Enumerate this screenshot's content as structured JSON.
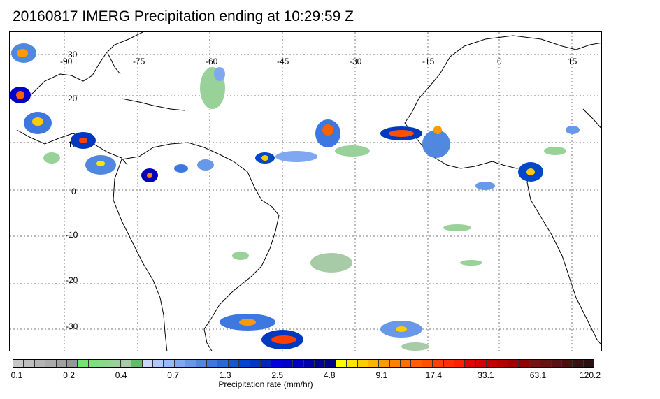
{
  "title": "20160817 IMERG Precipitation ending at 10:29:59 Z",
  "map": {
    "lon_labels": [
      "-90",
      "-75",
      "-60",
      "-45",
      "-30",
      "-15",
      "0",
      "15"
    ],
    "lat_labels": [
      "30",
      "20",
      "10",
      "0",
      "-10",
      "-20",
      "-30"
    ],
    "grid": "dotted"
  },
  "colorbar": {
    "title": "Precipitation rate (mm/hr)",
    "tick_labels": [
      "0.1",
      "0.2",
      "0.4",
      "0.7",
      "1.3",
      "2.5",
      "4.8",
      "9.1",
      "17.4",
      "33.1",
      "63.1",
      "120.2"
    ],
    "colors": [
      "#c8c8c8",
      "#bebebe",
      "#b4b4b4",
      "#aaaaaa",
      "#a0a0a0",
      "#969696",
      "#6fe66f",
      "#7de07d",
      "#8bd98b",
      "#99d299",
      "#a7cba7",
      "#66bb66",
      "#c8d8ff",
      "#b0c8ff",
      "#98b8ff",
      "#80a8f0",
      "#6898e8",
      "#5088e0",
      "#3c78e0",
      "#2868d8",
      "#1458d0",
      "#0048c8",
      "#0038c0",
      "#0028b8",
      "#0000d8",
      "#0000c8",
      "#0000b8",
      "#0000a8",
      "#000098",
      "#000088",
      "#ffff00",
      "#ffe600",
      "#ffcc00",
      "#ffb300",
      "#ff9900",
      "#ff8000",
      "#ff7000",
      "#ff6000",
      "#ff5000",
      "#ff4000",
      "#ff3000",
      "#ff2000",
      "#e00000",
      "#d00000",
      "#c00000",
      "#b00000",
      "#a00000",
      "#900000",
      "#7a1010",
      "#6a1010",
      "#5a1010",
      "#4a1010",
      "#3a1010",
      "#2a1010"
    ]
  }
}
